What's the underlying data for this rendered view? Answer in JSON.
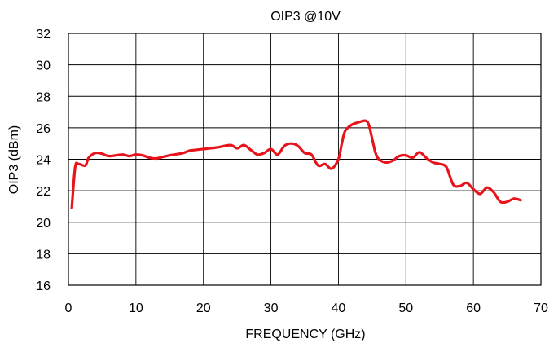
{
  "chart_data": {
    "type": "line",
    "title": "OIP3 @10V",
    "xlabel": "FREQUENCY (GHz)",
    "ylabel": "OIP3 (dBm)",
    "xlim": [
      0,
      70
    ],
    "ylim": [
      16,
      32
    ],
    "x_ticks": [
      0,
      10,
      20,
      30,
      40,
      50,
      60,
      70
    ],
    "y_ticks": [
      16,
      18,
      20,
      22,
      24,
      26,
      28,
      30,
      32
    ],
    "grid": true,
    "series_color": "#e8141b",
    "series": [
      {
        "values": [
          [
            0.5,
            20.9
          ],
          [
            1.0,
            23.5
          ],
          [
            1.5,
            23.7
          ],
          [
            2.5,
            23.6
          ],
          [
            3.0,
            24.1
          ],
          [
            4.0,
            24.4
          ],
          [
            5.0,
            24.35
          ],
          [
            6.0,
            24.2
          ],
          [
            8.0,
            24.3
          ],
          [
            9.0,
            24.2
          ],
          [
            10.0,
            24.3
          ],
          [
            11.0,
            24.25
          ],
          [
            12.0,
            24.1
          ],
          [
            13.0,
            24.05
          ],
          [
            14.0,
            24.15
          ],
          [
            15.0,
            24.25
          ],
          [
            17.0,
            24.4
          ],
          [
            18.0,
            24.55
          ],
          [
            20.0,
            24.65
          ],
          [
            22.0,
            24.75
          ],
          [
            24.0,
            24.9
          ],
          [
            25.0,
            24.7
          ],
          [
            26.0,
            24.9
          ],
          [
            27.0,
            24.6
          ],
          [
            28.0,
            24.3
          ],
          [
            29.0,
            24.4
          ],
          [
            30.0,
            24.65
          ],
          [
            31.0,
            24.3
          ],
          [
            32.0,
            24.85
          ],
          [
            33.0,
            25.0
          ],
          [
            34.0,
            24.85
          ],
          [
            35.0,
            24.4
          ],
          [
            36.0,
            24.3
          ],
          [
            37.0,
            23.6
          ],
          [
            38.0,
            23.7
          ],
          [
            39.0,
            23.4
          ],
          [
            40.0,
            24.0
          ],
          [
            40.5,
            25.0
          ],
          [
            41.0,
            25.8
          ],
          [
            42.0,
            26.2
          ],
          [
            43.0,
            26.35
          ],
          [
            44.0,
            26.45
          ],
          [
            44.5,
            26.2
          ],
          [
            45.0,
            25.3
          ],
          [
            45.5,
            24.4
          ],
          [
            46.0,
            24.0
          ],
          [
            47.0,
            23.8
          ],
          [
            48.0,
            23.9
          ],
          [
            49.0,
            24.2
          ],
          [
            50.0,
            24.25
          ],
          [
            51.0,
            24.1
          ],
          [
            52.0,
            24.45
          ],
          [
            53.0,
            24.1
          ],
          [
            54.0,
            23.8
          ],
          [
            55.0,
            23.7
          ],
          [
            56.0,
            23.5
          ],
          [
            57.0,
            22.4
          ],
          [
            58.0,
            22.3
          ],
          [
            59.0,
            22.5
          ],
          [
            60.0,
            22.1
          ],
          [
            61.0,
            21.8
          ],
          [
            62.0,
            22.2
          ],
          [
            63.0,
            21.9
          ],
          [
            64.0,
            21.3
          ],
          [
            65.0,
            21.3
          ],
          [
            66.0,
            21.5
          ],
          [
            67.0,
            21.4
          ]
        ]
      }
    ]
  }
}
